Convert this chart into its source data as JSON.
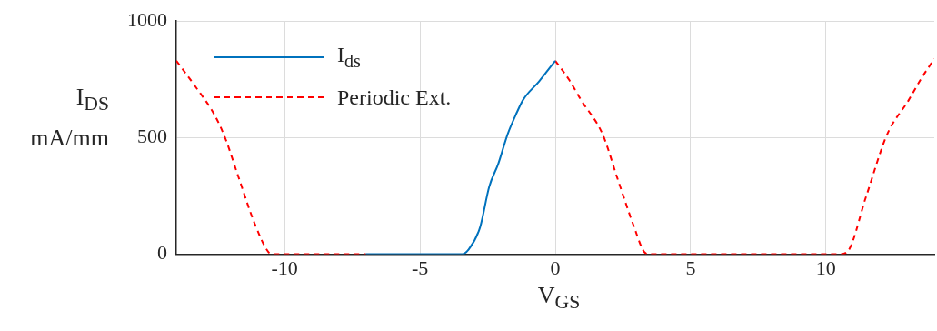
{
  "chart_data": {
    "type": "line",
    "xlabel": "V$_{GS}$",
    "ylabel": "I$_{DS}$ mA/mm",
    "xlim": [
      -14,
      14
    ],
    "xticks": [
      -10,
      -5,
      0,
      5,
      10
    ],
    "ylim": [
      0,
      1000
    ],
    "yticks": [
      0,
      500,
      1000
    ],
    "grid": true,
    "legend": "top left",
    "marker": "none",
    "series": [
      {
        "name": "I$_{ds}$",
        "color": "#0072bd",
        "line_style": "solid",
        "x": [
          -7,
          -3.45,
          -3.2,
          -2.78,
          -2.44,
          -2.1,
          -1.76,
          -1.45,
          -1.19,
          -0.6,
          0
        ],
        "values": [
          0,
          0,
          20,
          115,
          290,
          390,
          515,
          600,
          662,
          741,
          830
        ]
      },
      {
        "name": "Periodic Ext.",
        "color": "#ff0000",
        "line_style": "dashed",
        "x": [
          -14,
          -13.3,
          -12.6,
          -12.2,
          -11.7,
          -11.1,
          -10.6,
          -10.4,
          -7,
          -3.5,
          0,
          0.5,
          0.96,
          1.75,
          2.3,
          2.9,
          3.3,
          3.5,
          10.5,
          10.8,
          11.47,
          12.26,
          13.05,
          13.5,
          14
        ],
        "values": [
          830,
          720,
          600,
          500,
          330,
          130,
          10,
          0,
          0,
          null,
          830,
          750,
          660,
          514,
          324,
          121,
          8,
          0,
          0,
          12,
          243,
          514,
          660,
          750,
          838
        ]
      }
    ]
  }
}
